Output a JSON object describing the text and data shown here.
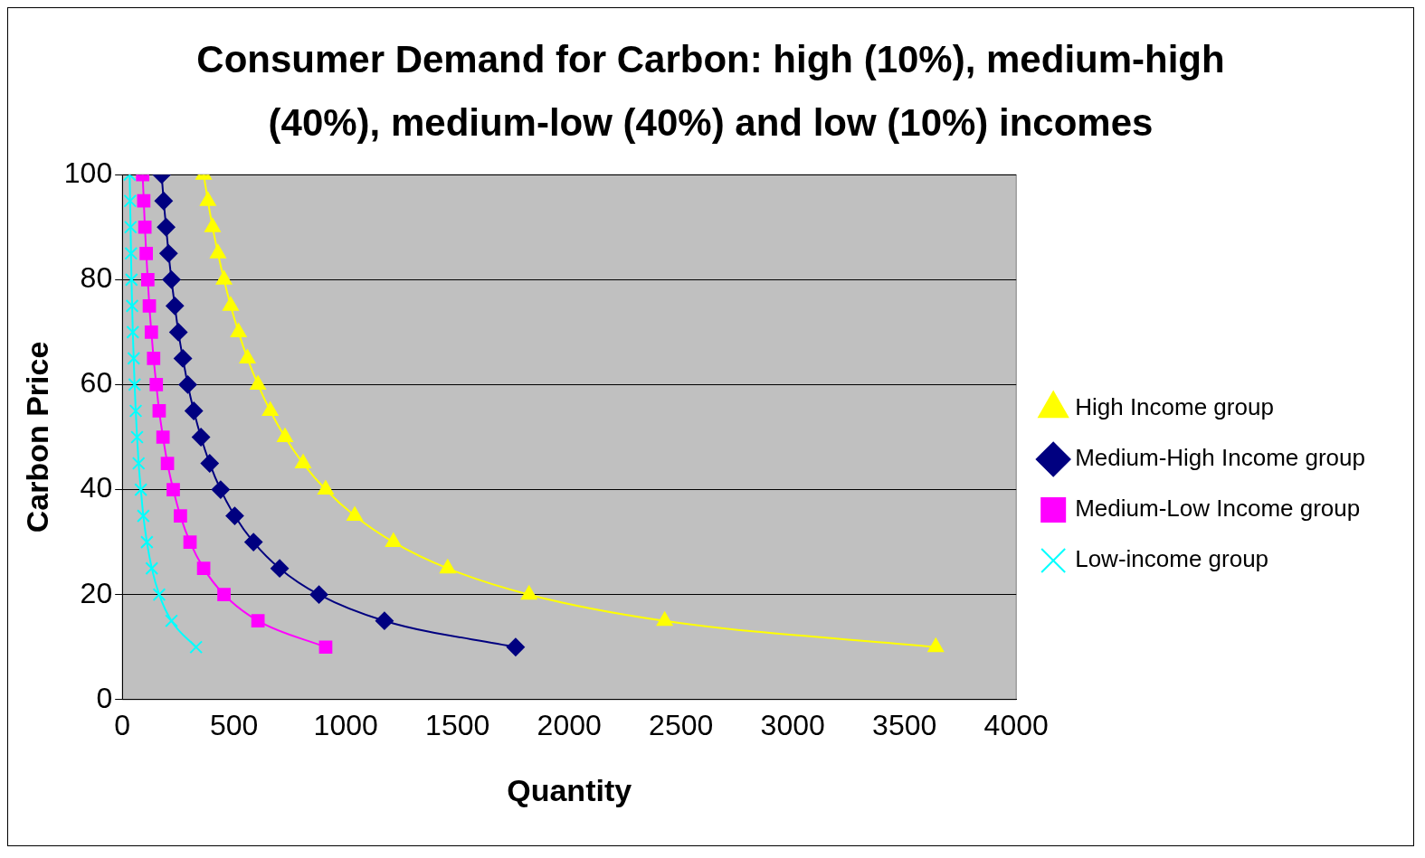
{
  "chart_data": {
    "type": "line",
    "title": "Consumer Demand for Carbon: high (10%), medium-high (40%), medium-low (40%) and low (10%) incomes",
    "xlabel": "Quantity",
    "ylabel": "Carbon Price",
    "xlim": [
      0,
      4000
    ],
    "xticks": [
      0,
      500,
      1000,
      1500,
      2000,
      2500,
      3000,
      3500,
      4000
    ],
    "ylim": [
      0,
      100
    ],
    "yticks": [
      0,
      20,
      40,
      60,
      80,
      100
    ],
    "grid": "y",
    "legend": "right",
    "series": [
      {
        "name": "High Income group",
        "color": "#ffff00",
        "marker": "triangle",
        "x": [
          3640,
          2427,
          1820,
          1456,
          1213,
          1040,
          910,
          809,
          728,
          662,
          607,
          560,
          520,
          485,
          455,
          428,
          404,
          383,
          364
        ],
        "values": [
          10,
          15,
          20,
          25,
          30,
          35,
          40,
          45,
          50,
          55,
          60,
          65,
          70,
          75,
          80,
          85,
          90,
          95,
          100
        ]
      },
      {
        "name": "Medium-High Income group",
        "color": "#000080",
        "marker": "diamond",
        "x": [
          1760,
          1173,
          880,
          704,
          587,
          503,
          440,
          391,
          352,
          320,
          293,
          271,
          251,
          235,
          220,
          207,
          196,
          185,
          176
        ],
        "values": [
          10,
          15,
          20,
          25,
          30,
          35,
          40,
          45,
          50,
          55,
          60,
          65,
          70,
          75,
          80,
          85,
          90,
          95,
          100
        ]
      },
      {
        "name": "Medium-Low Income group",
        "color": "#ff00ff",
        "marker": "square",
        "x": [
          910,
          607,
          455,
          364,
          303,
          260,
          228,
          202,
          182,
          165,
          152,
          140,
          130,
          121,
          114,
          107,
          101,
          96,
          91
        ],
        "values": [
          10,
          15,
          20,
          25,
          30,
          35,
          40,
          45,
          50,
          55,
          60,
          65,
          70,
          75,
          80,
          85,
          90,
          95,
          100
        ]
      },
      {
        "name": "Low-income group",
        "color": "#00ffff",
        "marker": "cross",
        "x": [
          330,
          220,
          165,
          132,
          110,
          94,
          83,
          73,
          66,
          60,
          55,
          51,
          47,
          44,
          41,
          39,
          37,
          35,
          33
        ],
        "values": [
          10,
          15,
          20,
          25,
          30,
          35,
          40,
          45,
          50,
          55,
          60,
          65,
          70,
          75,
          80,
          85,
          90,
          95,
          100
        ]
      }
    ]
  }
}
